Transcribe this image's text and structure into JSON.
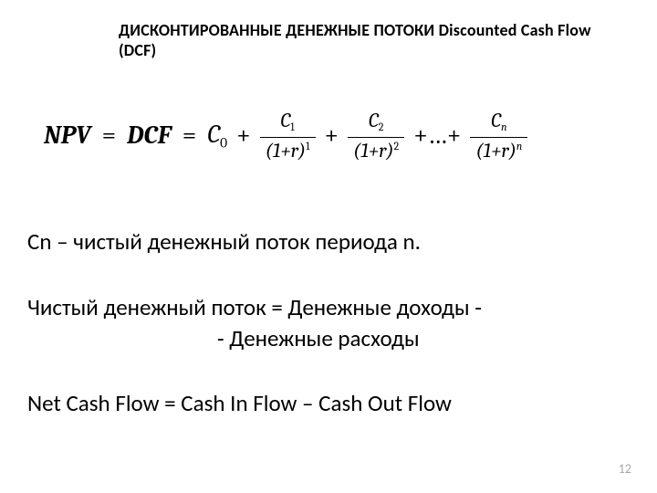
{
  "title": "ДИСКОНТИРОВАННЫЕ ДЕНЕЖНЫЕ ПОТОКИ Discounted Cash Flow (DCF)",
  "formula": {
    "lhs1": "NPV",
    "lhs2": "DCF",
    "c0_base": "C",
    "c0_sub": "0",
    "terms": [
      {
        "num_base": "C",
        "num_sub": "1",
        "den_base": "(1+r)",
        "den_sup": "1"
      },
      {
        "num_base": "C",
        "num_sub": "2",
        "den_base": "(1+r)",
        "den_sup": "2"
      }
    ],
    "ellipsis": "+…+",
    "last": {
      "num_base": "C",
      "num_sub": "n",
      "den_base": "(1+r)",
      "den_sup": "n"
    }
  },
  "line_cn": "Cn – чистый денежный поток периода n.",
  "line_ncf1": "Чистый денежный поток = Денежные доходы -",
  "line_ncf2": "- Денежные расходы",
  "line_eng": "Net Cash Flow = Cash In Flow – Cash Out Flow",
  "page_number": "12",
  "colors": {
    "text": "#000000",
    "background": "#ffffff",
    "page_num": "#a6a6a6"
  },
  "fonts": {
    "body_family": "Calibri, Arial, sans-serif",
    "math_family": "Cambria Math, Cambria, Times New Roman, serif",
    "title_size_pt": 14,
    "formula_size_pt": 21,
    "body_size_pt": 19,
    "page_num_size_pt": 11
  }
}
